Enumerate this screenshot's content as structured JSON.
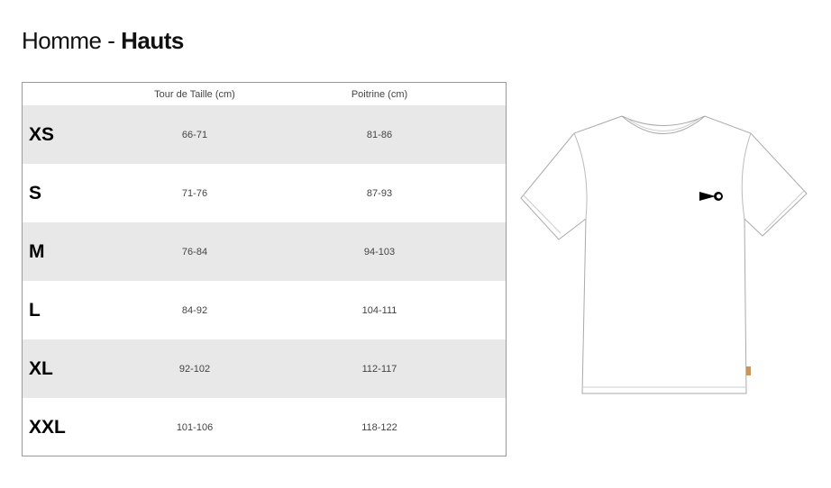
{
  "title": {
    "prefix": "Homme - ",
    "bold": "Hauts"
  },
  "table": {
    "headers": [
      "",
      "Tour de Taille (cm)",
      "Poitrine (cm)"
    ],
    "rows": [
      {
        "size": "XS",
        "waist": "66-71",
        "chest": "81-86"
      },
      {
        "size": "S",
        "waist": "71-76",
        "chest": "87-93"
      },
      {
        "size": "M",
        "waist": "76-84",
        "chest": "94-103"
      },
      {
        "size": "L",
        "waist": "84-92",
        "chest": "104-111"
      },
      {
        "size": "XL",
        "waist": "92-102",
        "chest": "112-117"
      },
      {
        "size": "XXL",
        "waist": "101-106",
        "chest": "118-122"
      }
    ]
  },
  "colors": {
    "shade": "#e8e8e8",
    "border": "#9a9a9a",
    "tag": "#c8955a"
  },
  "illustration": {
    "icon": "t-shirt-illustration"
  }
}
